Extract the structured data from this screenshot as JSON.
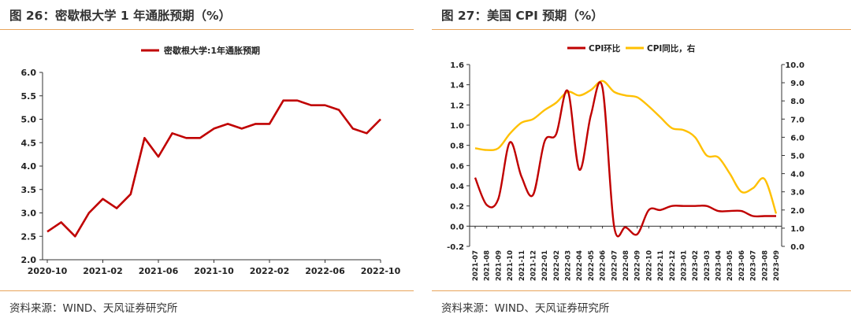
{
  "figures": [
    {
      "title": "图 26：密歇根大学 1 年通胀预期（%）",
      "source": "资料来源：WIND、天风证券研究所"
    },
    {
      "title": "图 27：美国 CPI 预期（%）",
      "source": "资料来源：WIND、天风证券研究所"
    }
  ],
  "colors": {
    "red": "#c00000",
    "yellow": "#ffc000",
    "rule": "#e8a45a"
  },
  "chart_data": [
    {
      "type": "line",
      "legend": [
        "密歇根大学:1年通胀预期"
      ],
      "legend_position": "top-center",
      "x": [
        "2020-10",
        "2020-11",
        "2020-12",
        "2021-01",
        "2021-02",
        "2021-03",
        "2021-04",
        "2021-05",
        "2021-06",
        "2021-07",
        "2021-08",
        "2021-09",
        "2021-10",
        "2021-11",
        "2021-12",
        "2022-01",
        "2022-02",
        "2022-03",
        "2022-04",
        "2022-05",
        "2022-06",
        "2022-07",
        "2022-08",
        "2022-09",
        "2022-10"
      ],
      "x_tick_labels": [
        "2020-10",
        "2021-02",
        "2021-06",
        "2021-10",
        "2022-02",
        "2022-06",
        "2022-10"
      ],
      "series": [
        {
          "name": "密歇根大学:1年通胀预期",
          "values": [
            2.6,
            2.8,
            2.5,
            3.0,
            3.3,
            3.1,
            3.4,
            4.6,
            4.2,
            4.7,
            4.6,
            4.6,
            4.8,
            4.9,
            4.8,
            4.9,
            4.9,
            5.4,
            5.4,
            5.3,
            5.3,
            5.2,
            4.8,
            4.7,
            5.0
          ]
        }
      ],
      "y_ticks": [
        "6.0",
        "5.5",
        "5.0",
        "4.5",
        "4.0",
        "3.5",
        "3.0",
        "2.5",
        "2.0"
      ],
      "ylim": [
        2.0,
        6.0
      ],
      "grid": false
    },
    {
      "type": "line",
      "legend": [
        "CPI环比",
        "CPI同比，右"
      ],
      "legend_position": "top-center",
      "x": [
        "2021-07",
        "2021-08",
        "2021-09",
        "2021-10",
        "2021-11",
        "2021-12",
        "2022-01",
        "2022-02",
        "2022-03",
        "2022-04",
        "2022-05",
        "2022-06",
        "2022-07",
        "2022-08",
        "2022-09",
        "2022-10",
        "2022-11",
        "2022-12",
        "2023-01",
        "2023-02",
        "2023-03",
        "2023-04",
        "2023-05",
        "2023-06",
        "2023-07",
        "2023-08",
        "2023-09"
      ],
      "series": [
        {
          "name": "CPI环比",
          "axis": "left",
          "values": [
            0.48,
            0.21,
            0.27,
            0.83,
            0.49,
            0.31,
            0.84,
            0.91,
            1.34,
            0.56,
            1.1,
            1.37,
            0.0,
            -0.01,
            -0.08,
            0.16,
            0.16,
            0.2,
            0.2,
            0.2,
            0.2,
            0.15,
            0.15,
            0.15,
            0.1,
            0.1,
            0.1
          ]
        },
        {
          "name": "CPI同比，右",
          "axis": "right",
          "values": [
            5.4,
            5.3,
            5.4,
            6.2,
            6.8,
            7.0,
            7.5,
            7.9,
            8.5,
            8.3,
            8.6,
            9.1,
            8.5,
            8.3,
            8.2,
            7.7,
            7.1,
            6.5,
            6.4,
            6.0,
            5.0,
            4.9,
            4.0,
            3.0,
            3.2,
            3.7,
            1.8
          ]
        }
      ],
      "y_ticks": [
        "1.6",
        "1.4",
        "1.2",
        "1.0",
        "0.8",
        "0.6",
        "0.4",
        "0.2",
        "0.0",
        "-0.2"
      ],
      "ylim": [
        -0.2,
        1.6
      ],
      "y2_ticks": [
        "10.0",
        "9.0",
        "8.0",
        "7.0",
        "6.0",
        "5.0",
        "4.0",
        "3.0",
        "2.0",
        "1.0",
        "0.0"
      ],
      "y2lim": [
        0,
        10
      ],
      "grid": false
    }
  ]
}
